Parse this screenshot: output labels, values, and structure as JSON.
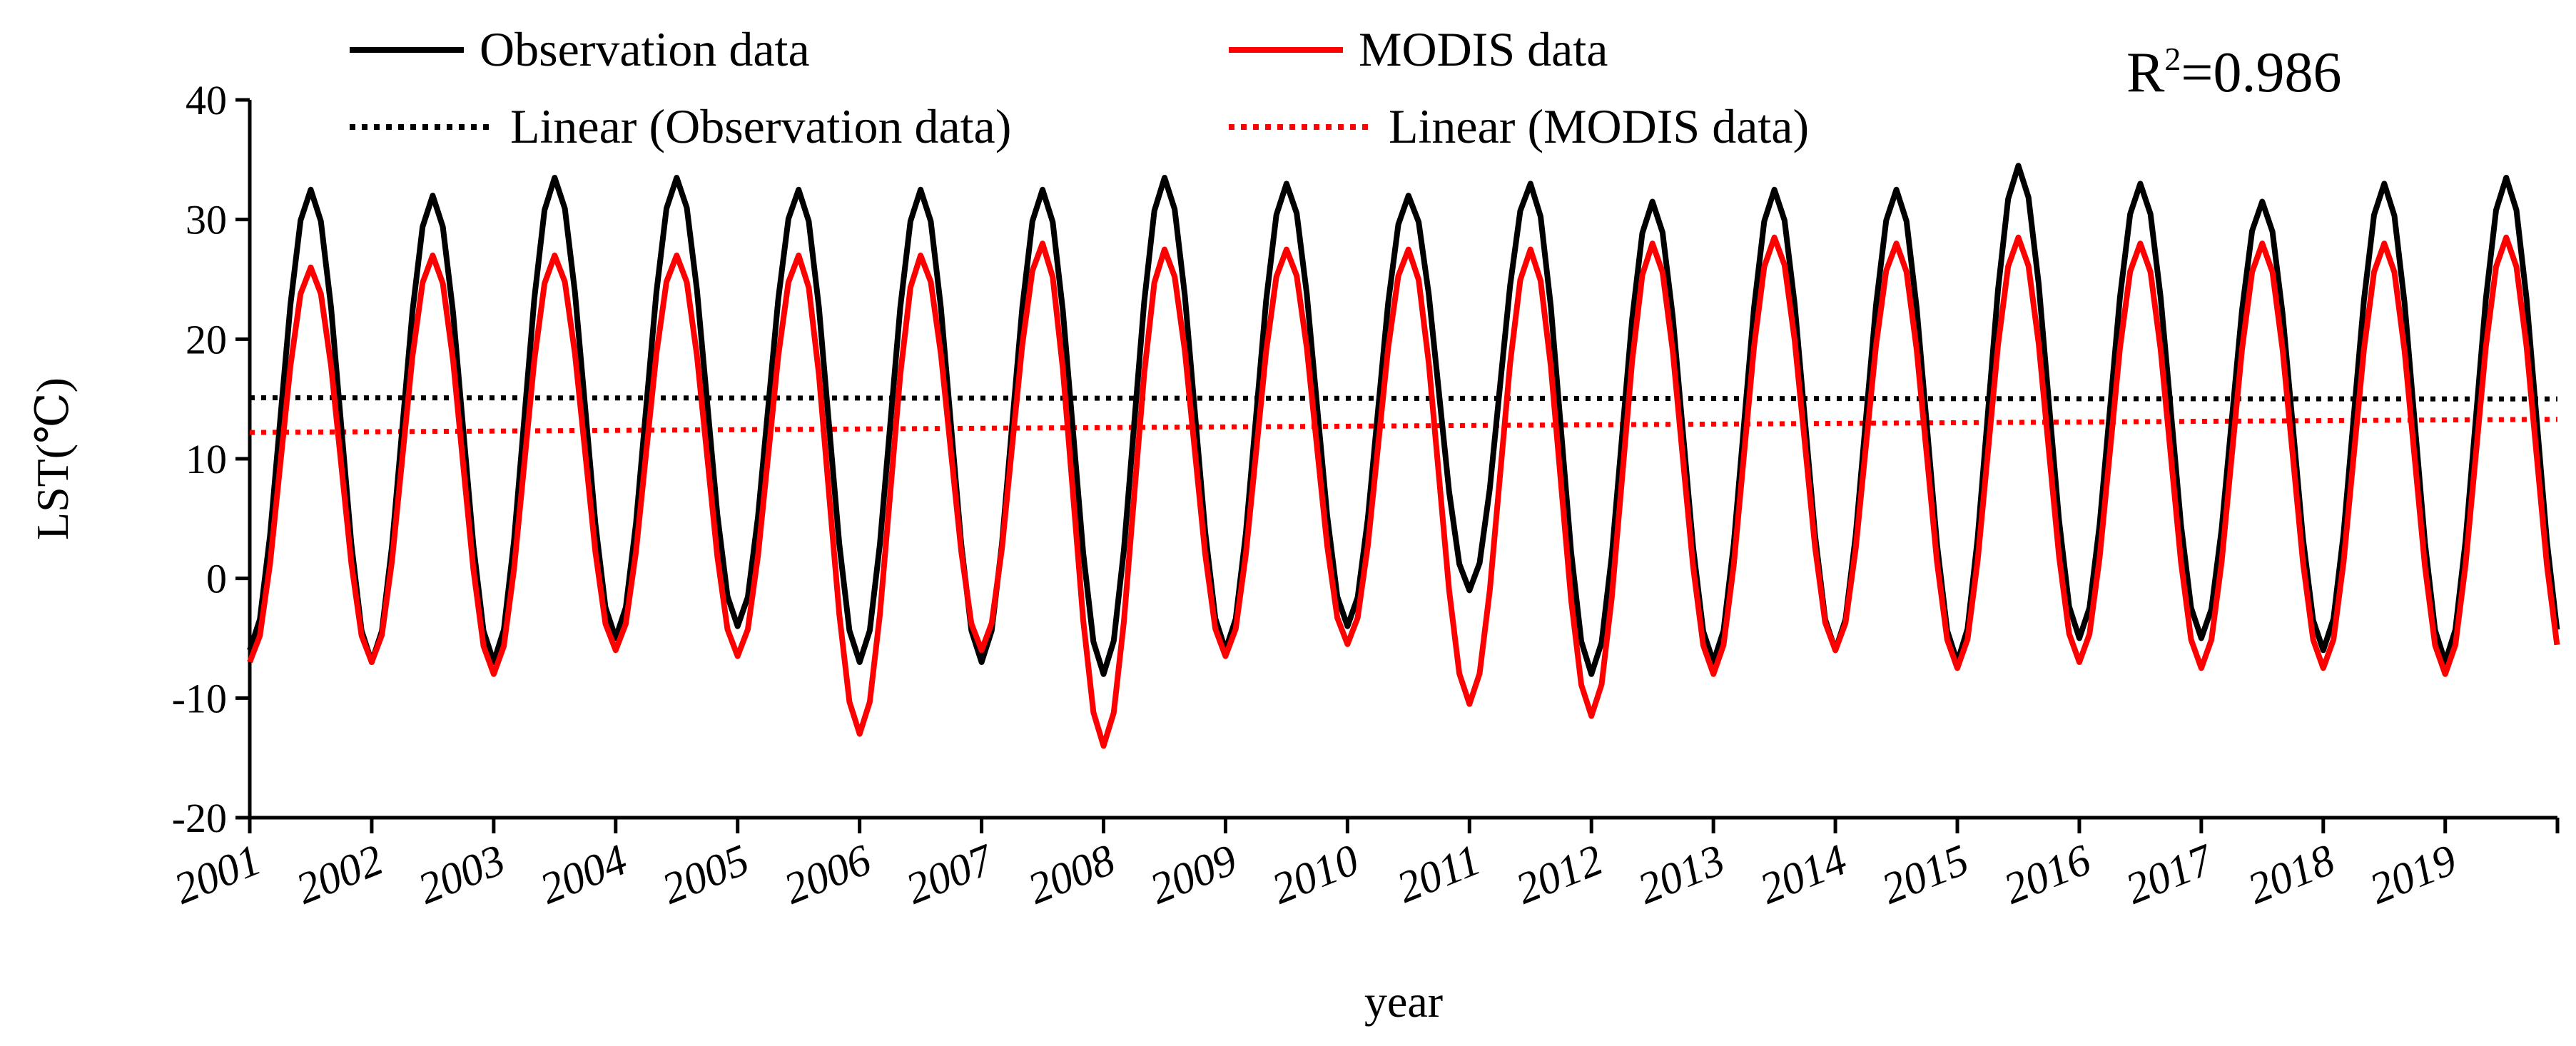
{
  "chart_data": {
    "type": "line",
    "xlabel": "year",
    "ylabel": "LST(℃)",
    "ylim": [
      -20,
      40
    ],
    "yticks": [
      -20,
      -10,
      0,
      10,
      20,
      30,
      40
    ],
    "xlim": [
      2001,
      2019.92
    ],
    "xtick_labels": [
      "2001",
      "2002",
      "2003",
      "2004",
      "2005",
      "2006",
      "2007",
      "2008",
      "2009",
      "2010",
      "2011",
      "2012",
      "2013",
      "2014",
      "2015",
      "2016",
      "2017",
      "2018",
      "2019"
    ],
    "annotation": {
      "prefix": "R",
      "superscript": "2",
      "value": "=0.986"
    },
    "legend": {
      "position": "top",
      "entries": [
        {
          "label": "Observation data",
          "color": "#000000",
          "style": "solid"
        },
        {
          "label": "MODIS data",
          "color": "#ff0000",
          "style": "solid"
        },
        {
          "label": "Linear (Observation data)",
          "color": "#000000",
          "style": "dotted"
        },
        {
          "label": "Linear (MODIS data)",
          "color": "#ff0000",
          "style": "dotted"
        }
      ]
    },
    "series": [
      {
        "name": "Observation data",
        "color": "#000000",
        "note": "monthly values, 12 per year starting Jan 2001",
        "annual_min": [
          -6,
          -7,
          -7,
          -5,
          -4,
          -7,
          -7,
          -8,
          -6,
          -4,
          -1,
          -8,
          -7,
          -6,
          -7,
          -5,
          -5,
          -6,
          -7
        ],
        "annual_max": [
          32.5,
          32,
          33.5,
          33.5,
          32.5,
          32.5,
          32.5,
          33.5,
          33,
          32,
          33,
          31.5,
          32.5,
          32.5,
          34.5,
          33,
          31.5,
          33,
          33.5
        ]
      },
      {
        "name": "MODIS data",
        "color": "#ff0000",
        "note": "monthly values, 12 per year starting Jan 2001",
        "annual_min": [
          -7,
          -7,
          -8,
          -6,
          -6.5,
          -13,
          -6,
          -14,
          -6.5,
          -5.5,
          -10.5,
          -11.5,
          -8,
          -6,
          -7.5,
          -7,
          -7.5,
          -7.5,
          -8
        ],
        "annual_max": [
          26,
          27,
          27,
          27,
          27,
          27,
          28,
          27.5,
          27.5,
          27.5,
          27.5,
          28,
          28.5,
          28,
          28.5,
          28,
          28,
          28,
          28.5
        ]
      },
      {
        "name": "Linear (Observation data)",
        "color": "#000000",
        "start": 15.1,
        "end": 15.0
      },
      {
        "name": "Linear (MODIS data)",
        "color": "#ff0000",
        "start": 12.2,
        "end": 13.3
      }
    ]
  }
}
